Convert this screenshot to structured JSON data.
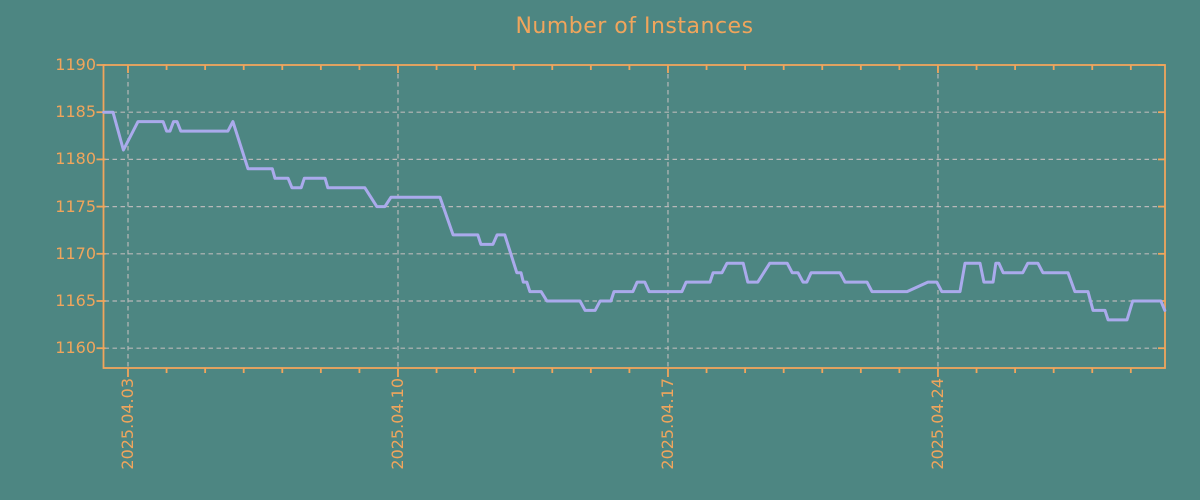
{
  "title": "Number of Instances",
  "colors": {
    "background": "#4d8682",
    "frame": "#f0a55c",
    "text": "#f0a55c",
    "grid": "#b8b8b8",
    "line": "#aaaaec"
  },
  "chart_data": {
    "type": "line",
    "title": "Number of Instances",
    "xlabel": "",
    "ylabel": "",
    "legend": "none",
    "grid": "dashed",
    "y_axis": {
      "ticks": [
        1160,
        1165,
        1170,
        1175,
        1180,
        1185,
        1190
      ],
      "tick_labels": [
        "1160",
        "1165",
        "1170",
        "1175",
        "1180",
        "1185",
        "1190"
      ],
      "value_at_top_border": 1190,
      "value_at_bottom_border": 1157.9
    },
    "x_axis": {
      "unit": "days relative to 2025.04.03",
      "range_days": [
        -0.64,
        26.89
      ],
      "minor_tick_every_days": 1,
      "major_ticks": [
        {
          "day": 0,
          "label": "2025.04.03"
        },
        {
          "day": 7,
          "label": "2025.04.10"
        },
        {
          "day": 14,
          "label": "2025.04.17"
        },
        {
          "day": 21,
          "label": "2025.04.24"
        }
      ]
    },
    "series": [
      {
        "name": "instances",
        "color": "#aaaaec",
        "points": [
          [
            -0.63,
            1185
          ],
          [
            -0.39,
            1185
          ],
          [
            -0.12,
            1181
          ],
          [
            0.26,
            1184
          ],
          [
            0.91,
            1184
          ],
          [
            1.0,
            1183
          ],
          [
            1.09,
            1183
          ],
          [
            1.18,
            1184
          ],
          [
            1.27,
            1184
          ],
          [
            1.37,
            1183
          ],
          [
            2.59,
            1183
          ],
          [
            2.72,
            1184
          ],
          [
            3.11,
            1179
          ],
          [
            3.74,
            1179
          ],
          [
            3.81,
            1178
          ],
          [
            4.15,
            1178
          ],
          [
            4.25,
            1177
          ],
          [
            4.49,
            1177
          ],
          [
            4.57,
            1178
          ],
          [
            5.11,
            1178
          ],
          [
            5.18,
            1177
          ],
          [
            6.14,
            1177
          ],
          [
            6.45,
            1175
          ],
          [
            6.66,
            1175
          ],
          [
            6.82,
            1176
          ],
          [
            8.09,
            1176
          ],
          [
            8.43,
            1172
          ],
          [
            9.07,
            1172
          ],
          [
            9.15,
            1171
          ],
          [
            9.46,
            1171
          ],
          [
            9.57,
            1172
          ],
          [
            9.77,
            1172
          ],
          [
            10.08,
            1168
          ],
          [
            10.19,
            1168
          ],
          [
            10.25,
            1167
          ],
          [
            10.34,
            1167
          ],
          [
            10.42,
            1166
          ],
          [
            10.71,
            1166
          ],
          [
            10.86,
            1165
          ],
          [
            11.72,
            1165
          ],
          [
            11.85,
            1164
          ],
          [
            12.11,
            1164
          ],
          [
            12.24,
            1165
          ],
          [
            12.52,
            1165
          ],
          [
            12.6,
            1166
          ],
          [
            13.09,
            1166
          ],
          [
            13.2,
            1167
          ],
          [
            13.4,
            1167
          ],
          [
            13.51,
            1166
          ],
          [
            14.36,
            1166
          ],
          [
            14.47,
            1167
          ],
          [
            15.09,
            1167
          ],
          [
            15.17,
            1168
          ],
          [
            15.4,
            1168
          ],
          [
            15.53,
            1169
          ],
          [
            15.95,
            1169
          ],
          [
            16.07,
            1167
          ],
          [
            16.33,
            1167
          ],
          [
            16.64,
            1169
          ],
          [
            17.09,
            1169
          ],
          [
            17.22,
            1168
          ],
          [
            17.37,
            1168
          ],
          [
            17.5,
            1167
          ],
          [
            17.6,
            1167
          ],
          [
            17.71,
            1168
          ],
          [
            18.46,
            1168
          ],
          [
            18.59,
            1167
          ],
          [
            19.16,
            1167
          ],
          [
            19.29,
            1166
          ],
          [
            20.2,
            1166
          ],
          [
            20.74,
            1167
          ],
          [
            20.97,
            1167
          ],
          [
            21.1,
            1166
          ],
          [
            21.57,
            1166
          ],
          [
            21.7,
            1169
          ],
          [
            22.09,
            1169
          ],
          [
            22.19,
            1167
          ],
          [
            22.43,
            1167
          ],
          [
            22.5,
            1169
          ],
          [
            22.58,
            1169
          ],
          [
            22.69,
            1168
          ],
          [
            23.2,
            1168
          ],
          [
            23.33,
            1169
          ],
          [
            23.59,
            1169
          ],
          [
            23.72,
            1168
          ],
          [
            24.37,
            1168
          ],
          [
            24.55,
            1166
          ],
          [
            24.89,
            1166
          ],
          [
            25.02,
            1164
          ],
          [
            25.33,
            1164
          ],
          [
            25.41,
            1163
          ],
          [
            25.9,
            1163
          ],
          [
            26.05,
            1165
          ],
          [
            26.78,
            1165
          ],
          [
            26.88,
            1164
          ]
        ]
      }
    ]
  }
}
